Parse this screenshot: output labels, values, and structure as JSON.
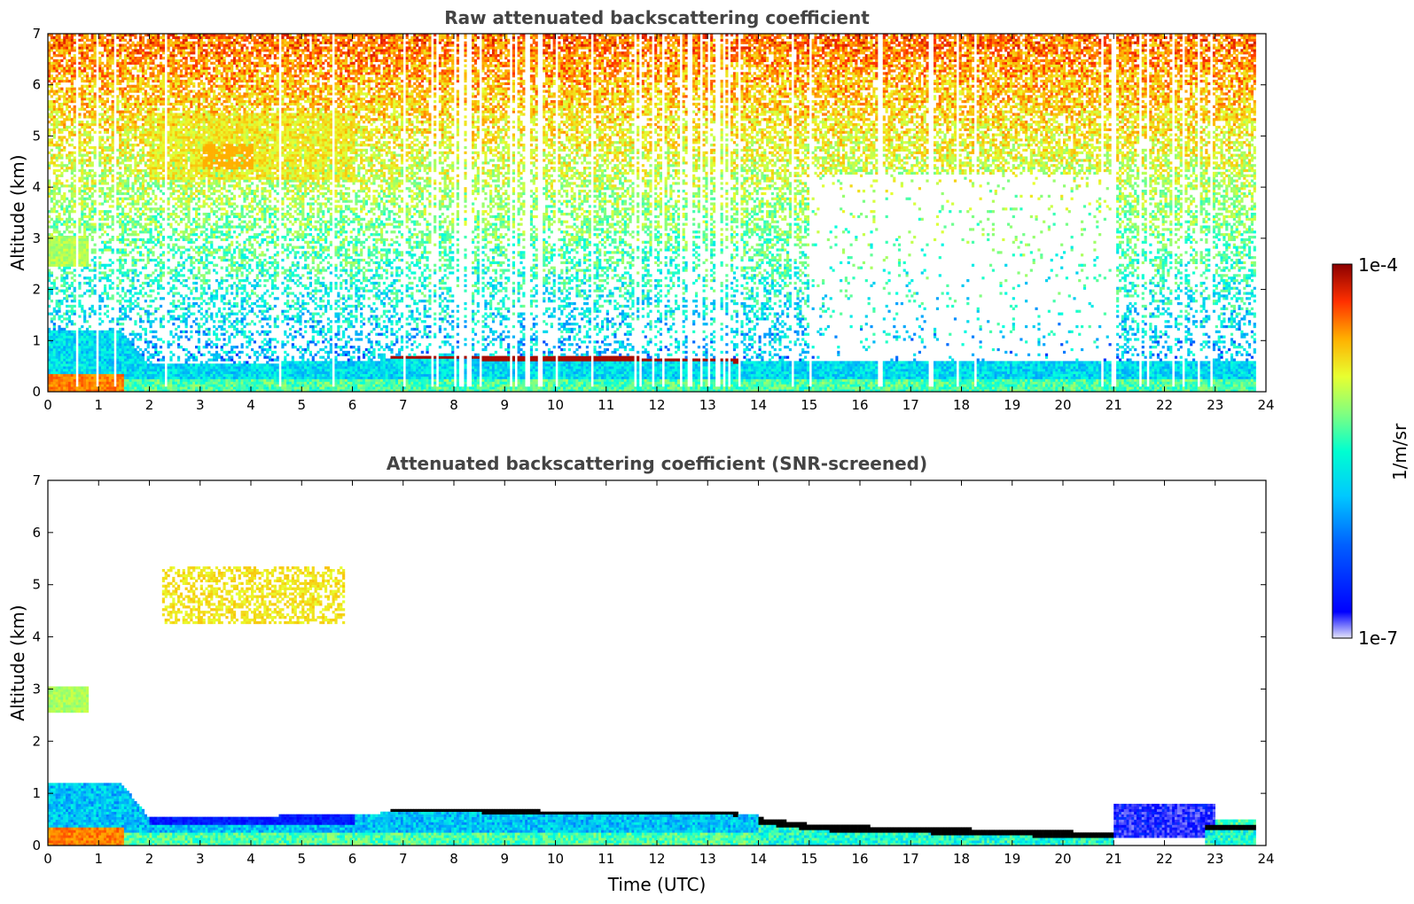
{
  "colors": {
    "jet": [
      "#e6e6fa",
      "#0000ff",
      "#00a0ff",
      "#00ffe0",
      "#80ff80",
      "#e8ff30",
      "#ffb000",
      "#ff3000",
      "#8b0000"
    ],
    "under": "#ffffff",
    "layer_black": "#000000"
  },
  "colorbar": {
    "max_label": "1e-4",
    "min_label": "1e-7",
    "unit_label": "1/m/sr",
    "scale": "log"
  },
  "chart_data": [
    {
      "type": "heatmap",
      "title": "Raw attenuated backscattering coefficient",
      "xlabel": "",
      "ylabel": "Altitude (km)",
      "xlim": [
        0,
        24
      ],
      "ylim": [
        0,
        7
      ],
      "xticks": [
        0,
        1,
        2,
        3,
        4,
        5,
        6,
        7,
        8,
        9,
        10,
        11,
        12,
        13,
        14,
        15,
        16,
        17,
        18,
        19,
        20,
        21,
        22,
        23,
        24
      ],
      "yticks": [
        0,
        1,
        2,
        3,
        4,
        5,
        6,
        7
      ],
      "grid": false,
      "data_end_time": 23.8,
      "features": [
        {
          "name": "boundary layer aerosol",
          "t_start": 0,
          "t_end": 14,
          "top_km": [
            1.3,
            1.15,
            0.5,
            0.45,
            0.6,
            0.6,
            0.55
          ],
          "level": 0.45
        },
        {
          "name": "mid-level aerosol 2.5-3 km",
          "t_start": 0,
          "t_end": 0.8,
          "alt_km": [
            2.4,
            3.0
          ],
          "level": 0.5
        },
        {
          "name": "aerosol layer 4-5.5 km",
          "t_start": 2,
          "t_end": 6,
          "alt_km": [
            4.1,
            5.4
          ],
          "level": 0.6
        },
        {
          "name": "low cloud layer",
          "t_start": 6.7,
          "t_end": 23.8,
          "alt_km": [
            0.1,
            0.65
          ],
          "level": 1.0
        },
        {
          "name": "noise upper atmosphere",
          "t_start": 0,
          "t_end": 23.8,
          "alt_km": [
            1.5,
            7.0
          ],
          "level": 0.55
        }
      ]
    },
    {
      "type": "heatmap",
      "title": "Attenuated backscattering coefficient (SNR-screened)",
      "xlabel": "Time (UTC)",
      "ylabel": "Altitude (km)",
      "xlim": [
        0,
        24
      ],
      "ylim": [
        0,
        7
      ],
      "xticks": [
        0,
        1,
        2,
        3,
        4,
        5,
        6,
        7,
        8,
        9,
        10,
        11,
        12,
        13,
        14,
        15,
        16,
        17,
        18,
        19,
        20,
        21,
        22,
        23,
        24
      ],
      "yticks": [
        0,
        1,
        2,
        3,
        4,
        5,
        6,
        7
      ],
      "grid": false,
      "data_end_time": 23.8,
      "features": [
        {
          "name": "boundary layer aerosol",
          "t_start": 0,
          "t_end": 14,
          "top_km": [
            1.3,
            1.15,
            0.5,
            0.5,
            0.65,
            0.65,
            0.55
          ],
          "level": 0.45
        },
        {
          "name": "mid-level aerosol 2.5-3 km",
          "t_start": 0,
          "t_end": 0.8,
          "alt_km": [
            2.5,
            3.0
          ],
          "level": 0.5
        },
        {
          "name": "aerosol layer 4-5.5 km",
          "t_start": 2.2,
          "t_end": 5.8,
          "alt_km": [
            4.2,
            5.3
          ],
          "level": 0.62
        },
        {
          "name": "low cloud layer",
          "t_start": 6.7,
          "t_end": 23.8,
          "alt_km": [
            0.1,
            0.7
          ],
          "level": 0.0
        },
        {
          "name": "aerosol after 21 UTC",
          "t_start": 21,
          "t_end": 23,
          "alt_km": [
            0.3,
            0.8
          ],
          "level": 0.15
        }
      ]
    }
  ]
}
